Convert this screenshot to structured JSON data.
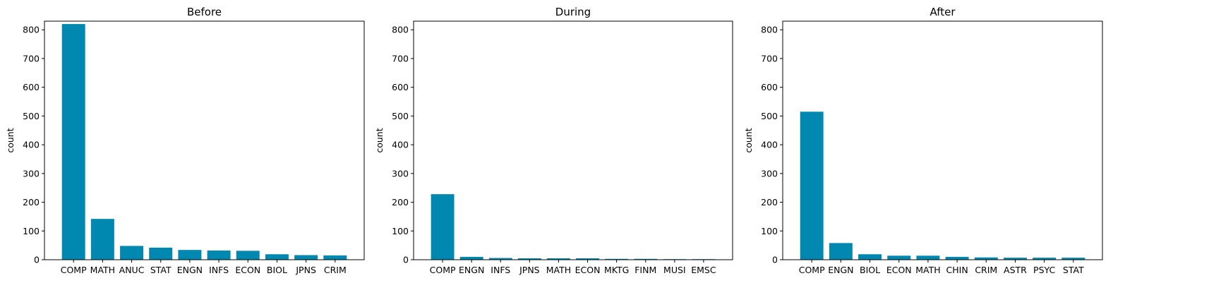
{
  "chart_data": [
    {
      "type": "bar",
      "title": "Before",
      "xlabel": "",
      "ylabel": "count",
      "ylim": [
        0,
        830
      ],
      "yticks": [
        0,
        100,
        200,
        300,
        400,
        500,
        600,
        700,
        800
      ],
      "grid": false,
      "bar_color": "#0088b0",
      "categories": [
        "COMP",
        "MATH",
        "ANUC",
        "STAT",
        "ENGN",
        "INFS",
        "ECON",
        "BIOL",
        "JPNS",
        "CRIM"
      ],
      "values": [
        820,
        142,
        48,
        42,
        34,
        32,
        31,
        19,
        16,
        15
      ]
    },
    {
      "type": "bar",
      "title": "During",
      "xlabel": "",
      "ylabel": "count",
      "ylim": [
        0,
        830
      ],
      "yticks": [
        0,
        100,
        200,
        300,
        400,
        500,
        600,
        700,
        800
      ],
      "grid": false,
      "bar_color": "#0088b0",
      "categories": [
        "COMP",
        "ENGN",
        "INFS",
        "JPNS",
        "MATH",
        "ECON",
        "MKTG",
        "FINM",
        "MUSI",
        "EMSC"
      ],
      "values": [
        228,
        10,
        6,
        5,
        5,
        5,
        3,
        3,
        2,
        2
      ]
    },
    {
      "type": "bar",
      "title": "After",
      "xlabel": "",
      "ylabel": "count",
      "ylim": [
        0,
        830
      ],
      "yticks": [
        0,
        100,
        200,
        300,
        400,
        500,
        600,
        700,
        800
      ],
      "grid": false,
      "bar_color": "#0088b0",
      "categories": [
        "COMP",
        "ENGN",
        "BIOL",
        "ECON",
        "MATH",
        "CHIN",
        "CRIM",
        "ASTR",
        "PSYC",
        "STAT"
      ],
      "values": [
        515,
        58,
        19,
        14,
        14,
        10,
        8,
        7,
        7,
        7
      ]
    }
  ]
}
